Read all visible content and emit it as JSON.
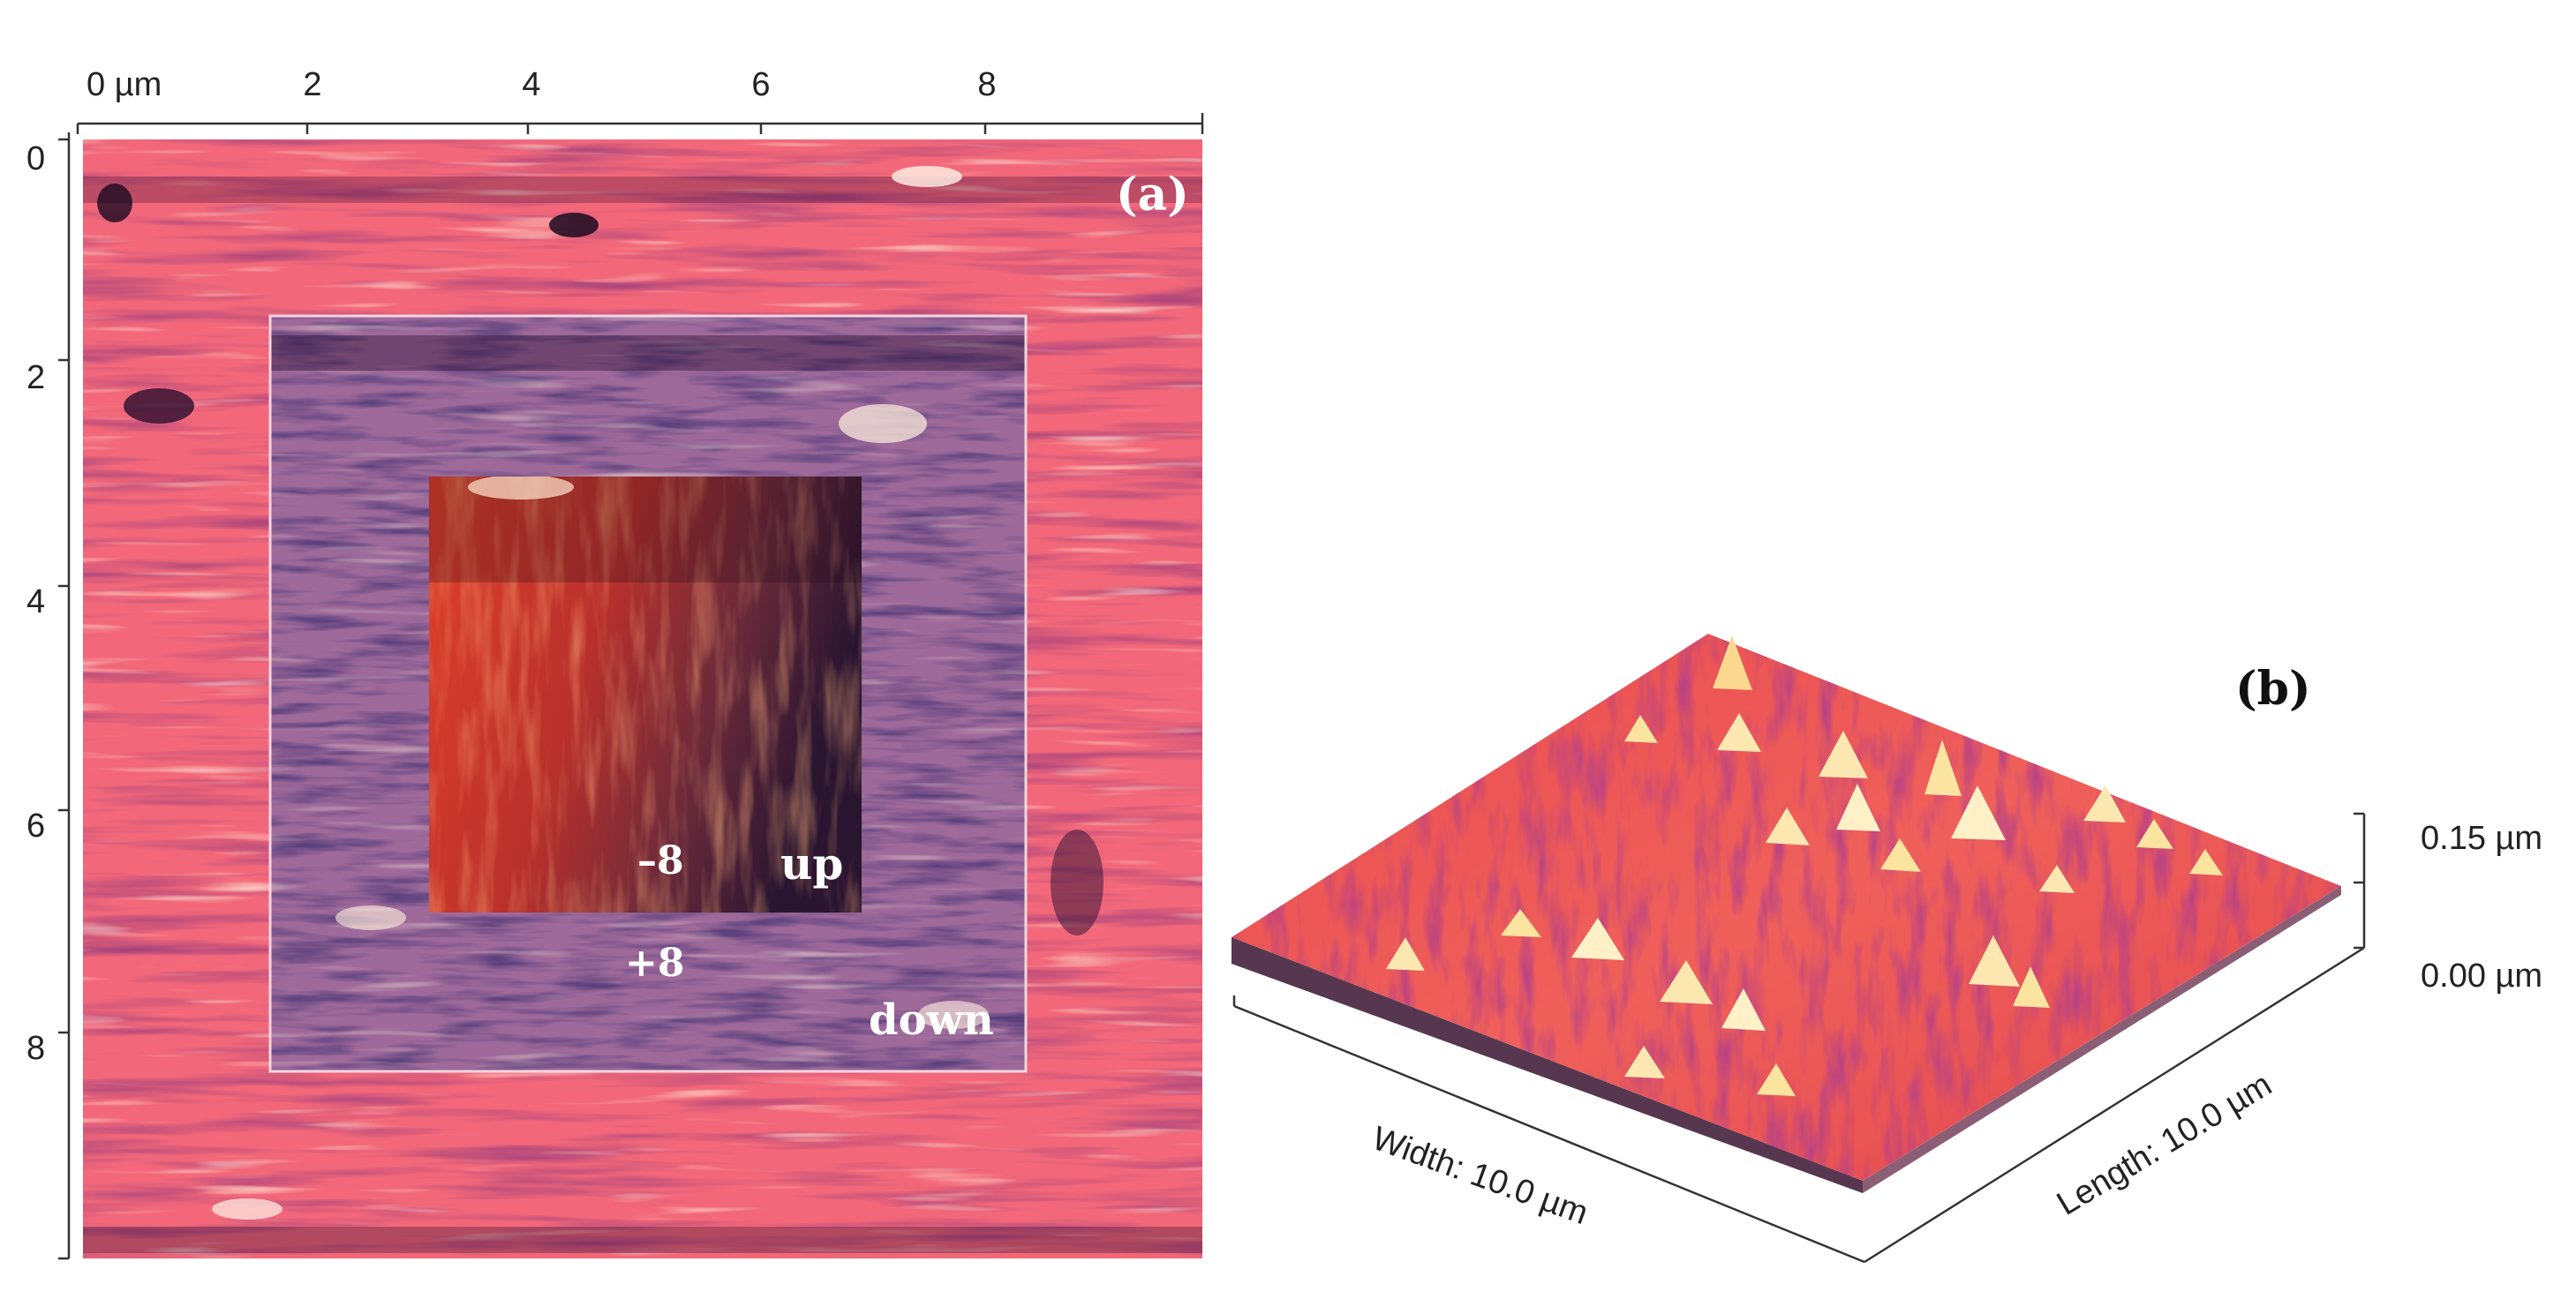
{
  "panel_a": {
    "label": "(a)",
    "x_ticks": [
      "0 µm",
      "2",
      "4",
      "6",
      "8"
    ],
    "y_ticks": [
      "0",
      "2",
      "4",
      "6",
      "8"
    ],
    "annotations": {
      "minus": "–8",
      "plus": "+8",
      "up": "up",
      "down": "down"
    },
    "colors": {
      "background": "#f2687a",
      "mid_square": "#9e6a9a",
      "inner_square": "#c8322c"
    }
  },
  "panel_b": {
    "label": "(b)",
    "width_label": "Width: 10.0 µm",
    "length_label": "Length: 10.0 µm",
    "z_ticks": [
      "0.15 µm",
      "0.00 µm"
    ],
    "colors": {
      "surface": "#ee5a55",
      "peaks": "#fbe3a0"
    }
  }
}
